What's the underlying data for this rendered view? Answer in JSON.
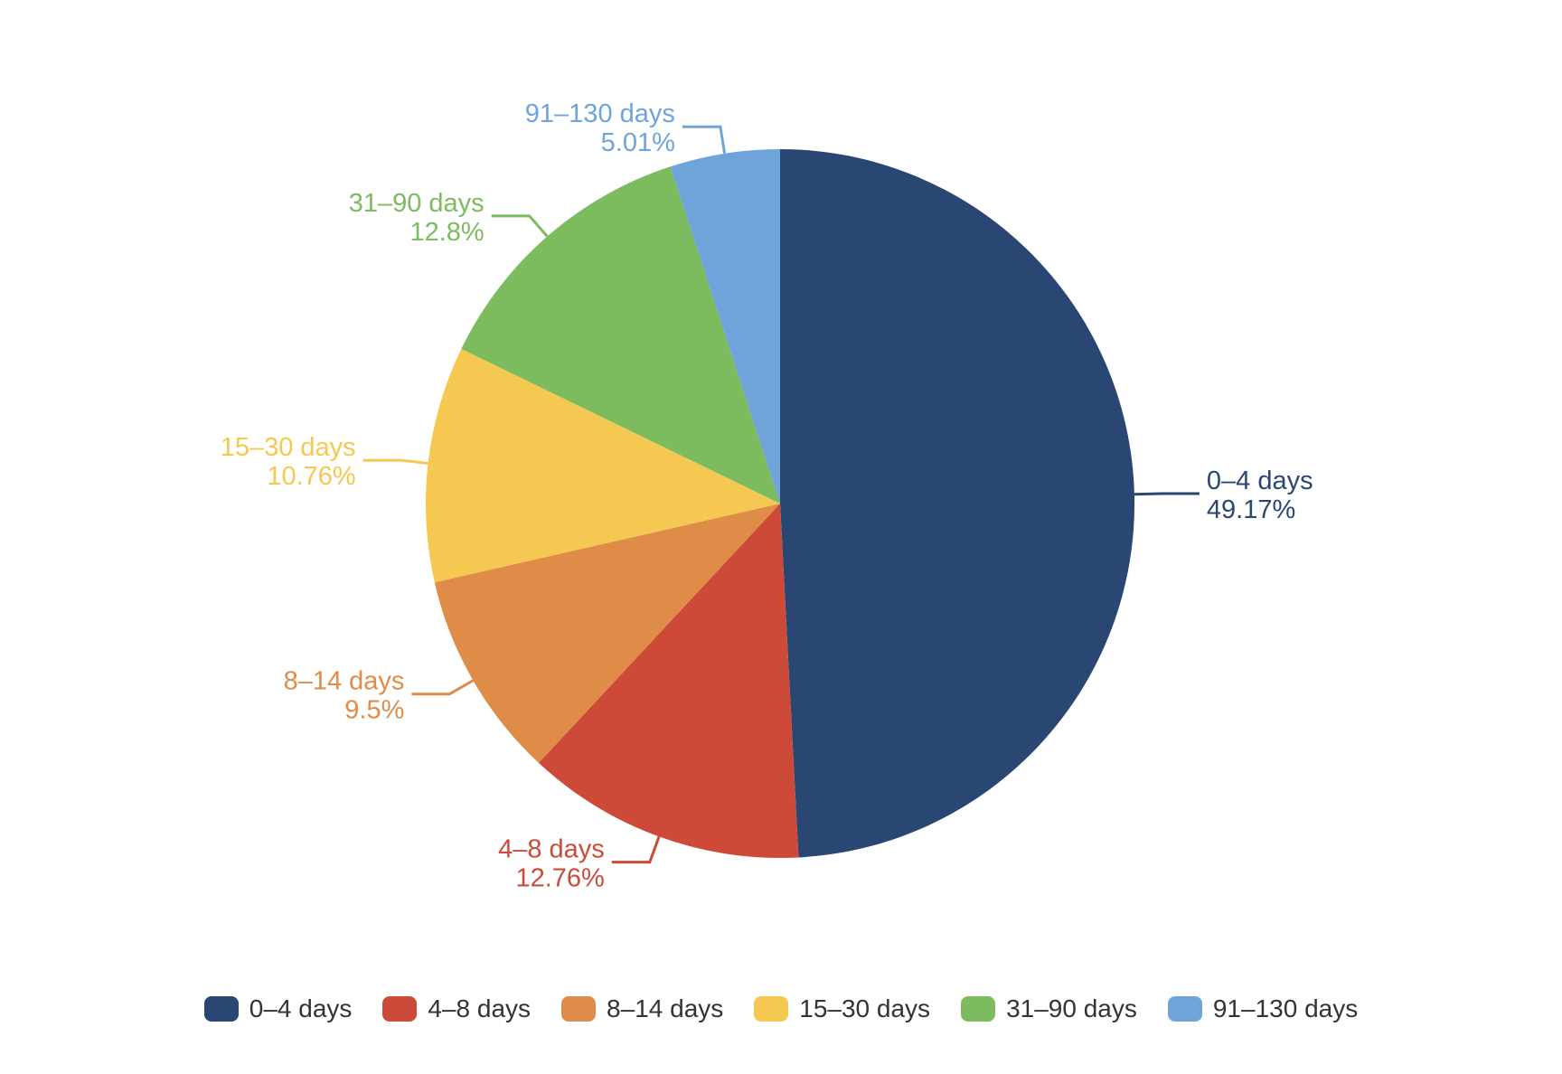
{
  "chart_data": {
    "type": "pie",
    "title": "",
    "categories": [
      "0–4 days",
      "4–8 days",
      "8–14 days",
      "15–30 days",
      "31–90 days",
      "91–130 days"
    ],
    "values": [
      49.17,
      12.76,
      9.5,
      10.76,
      12.8,
      5.01
    ],
    "percent_labels": [
      "49.17%",
      "12.76%",
      "9.5%",
      "10.76%",
      "12.8%",
      "5.01%"
    ],
    "colors": [
      "#2A4672",
      "#CE4A38",
      "#E08C49",
      "#F4C851",
      "#7DBB5F",
      "#6FA4DA"
    ],
    "start_angle_deg_from_top": 0,
    "direction": "clockwise",
    "legend": {
      "position": "bottom",
      "items": [
        "0–4 days",
        "4–8 days",
        "8–14 days",
        "15–30 days",
        "31–90 days",
        "91–130 days"
      ]
    },
    "legend_text_color": "#333333",
    "background_color": "#ffffff"
  }
}
